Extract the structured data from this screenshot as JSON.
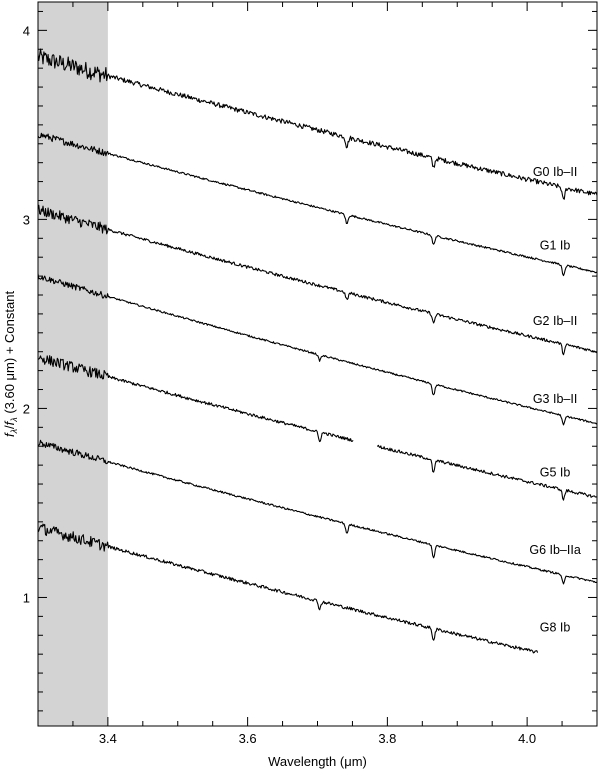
{
  "chart_data": {
    "type": "line",
    "title": "",
    "xlabel": "Wavelength (μm)",
    "ylabel": "f_λ/f_λ(3.60 μm) + Constant",
    "ylabel_parts": {
      "f1": "f",
      "sub1": "λ",
      "slash": "/",
      "f2": "f",
      "sub2": "λ",
      "rest": " (3.60 μm) + Constant"
    },
    "xlim": [
      3.3,
      4.1
    ],
    "ylim": [
      0.32,
      4.15
    ],
    "xticks": [
      3.4,
      3.6,
      3.8,
      4.0
    ],
    "xtick_labels": [
      "3.4",
      "3.6",
      "3.8",
      "4.0"
    ],
    "yticks": [
      1,
      2,
      3,
      4
    ],
    "ytick_labels": [
      "1",
      "2",
      "3",
      "4"
    ],
    "grid": false,
    "shaded_region": {
      "x": [
        3.3,
        3.4
      ],
      "color": "#d3d3d3"
    },
    "line_color": "#000000",
    "series": [
      {
        "name": "G0 Ib–II",
        "y_start": 3.86,
        "y_end": 3.13,
        "x_end": 4.1,
        "noise": 0.045,
        "absorption": [
          [
            3.742,
            0.05
          ],
          [
            3.866,
            0.05
          ],
          [
            4.052,
            0.07
          ]
        ]
      },
      {
        "name": "G1 Ib",
        "y_start": 3.45,
        "y_end": 2.72,
        "x_end": 4.1,
        "noise": 0.018,
        "absorption": [
          [
            3.742,
            0.05
          ],
          [
            3.866,
            0.05
          ],
          [
            4.052,
            0.06
          ]
        ]
      },
      {
        "name": "G2 Ib–II",
        "y_start": 3.05,
        "y_end": 2.3,
        "x_end": 4.1,
        "noise": 0.028,
        "absorption": [
          [
            3.742,
            0.04
          ],
          [
            3.866,
            0.05
          ],
          [
            4.052,
            0.05
          ]
        ]
      },
      {
        "name": "G3 Ib–II",
        "y_start": 2.7,
        "y_end": 1.92,
        "x_end": 4.1,
        "noise": 0.016,
        "absorption": [
          [
            3.703,
            0.03
          ],
          [
            3.866,
            0.06
          ],
          [
            4.052,
            0.05
          ]
        ]
      },
      {
        "name": "G5 Ib",
        "y_start": 2.27,
        "y_end": 1.53,
        "x_end": 4.1,
        "noise": 0.028,
        "gap": [
          3.752,
          3.785
        ],
        "absorption": [
          [
            3.703,
            0.05
          ],
          [
            3.866,
            0.07
          ],
          [
            4.052,
            0.05
          ]
        ]
      },
      {
        "name": "G6 Ib–IIa",
        "y_start": 1.82,
        "y_end": 1.08,
        "x_end": 4.1,
        "noise": 0.018,
        "absorption": [
          [
            3.742,
            0.05
          ],
          [
            3.866,
            0.07
          ],
          [
            4.052,
            0.05
          ]
        ]
      },
      {
        "name": "G8 Ib",
        "y_start": 1.37,
        "y_end": 0.64,
        "x_end": 4.015,
        "noise": 0.03,
        "absorption": [
          [
            3.703,
            0.04
          ],
          [
            3.866,
            0.06
          ]
        ]
      }
    ],
    "label_x": 4.04,
    "label_y": [
      3.23,
      2.84,
      2.44,
      2.03,
      1.64,
      1.23,
      0.82
    ]
  }
}
